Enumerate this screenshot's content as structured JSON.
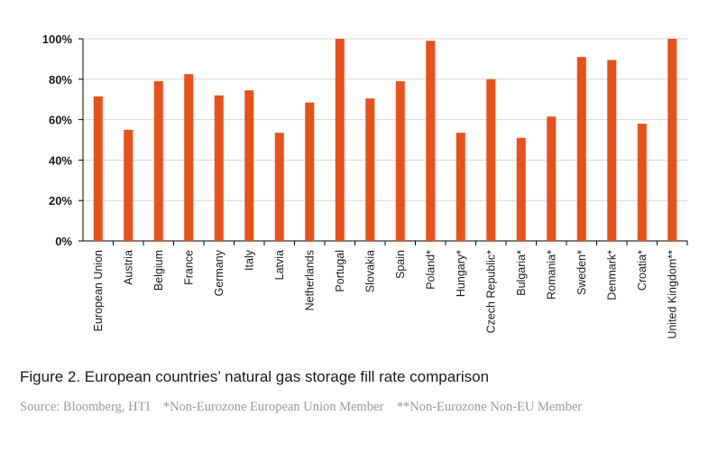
{
  "chart_data": {
    "type": "bar",
    "categories": [
      "European Union",
      "Austria",
      "Belgium",
      "France",
      "Germany",
      "Italy",
      "Latvia",
      "Netherlands",
      "Portugal",
      "Slovakia",
      "Spain",
      "Poland*",
      "Hungary*",
      "Czech Republic*",
      "Bulgaria*",
      "Romania*",
      "Sweden*",
      "Denmark*",
      "Croatia*",
      "United Kingdom**"
    ],
    "values": [
      71.5,
      55,
      79,
      82.5,
      72,
      74.5,
      53.5,
      68.5,
      100,
      70.5,
      79,
      99,
      53.5,
      80,
      51,
      61.5,
      91,
      89.5,
      58,
      100
    ],
    "ylim": [
      0,
      100
    ],
    "yticks": [
      "0%",
      "20%",
      "40%",
      "60%",
      "80%",
      "100%"
    ],
    "ytick_values": [
      0,
      20,
      40,
      60,
      80,
      100
    ],
    "grid": true,
    "bar_color": "#e8511a",
    "grid_color": "#d6d6d6"
  },
  "caption": {
    "title": "Figure 2. European countries’ natural gas storage fill rate comparison",
    "source": "Source: Bloomberg, HTI",
    "note1": "*Non-Eurozone European Union Member",
    "note2": "**Non-Eurozone Non-EU Member"
  }
}
